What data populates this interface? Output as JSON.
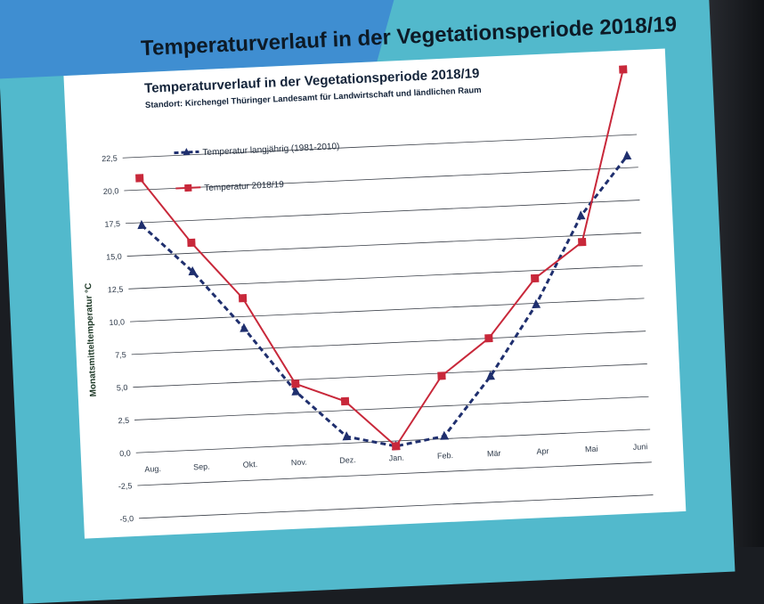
{
  "slide": {
    "title": "Temperaturverlauf in der Vegetationsperiode 2018/19"
  },
  "chart_data": {
    "type": "line",
    "title": "Temperaturverlauf in der Vegetationsperiode 2018/19",
    "subtitle": "Standort: Kirchengel  Thüringer Landesamt für Landwirtschaft und ländlichen Raum",
    "ylabel": "Monatsmitteltemperatur °C",
    "xlabel": "",
    "categories": [
      "Aug.",
      "Sep.",
      "Okt.",
      "Nov.",
      "Dez.",
      "Jan.",
      "Feb.",
      "Mär",
      "Apr",
      "Mai",
      "Juni"
    ],
    "ylim": [
      -5,
      22.5
    ],
    "yticks": [
      "22,5",
      "20,0",
      "17,5",
      "15,0",
      "12,5",
      "10,0",
      "7,5",
      "5,0",
      "2,5",
      "0,0",
      "-2,5",
      "-5,0"
    ],
    "series": [
      {
        "name": "Temperatur langjährig  (1981-2010)",
        "color": "#1f2f6e",
        "style": "dashed",
        "marker": "triangle",
        "values": [
          17.3,
          13.6,
          9.1,
          4.1,
          0.5,
          -0.4,
          0.2,
          4.6,
          9.9,
          16.5,
          20.9
        ]
      },
      {
        "name": "Temperatur 2018/19",
        "color": "#c8283a",
        "style": "solid",
        "marker": "square",
        "values": [
          20.9,
          15.8,
          11.4,
          4.7,
          3.2,
          -0.4,
          4.8,
          7.5,
          11.9,
          14.5,
          27.5
        ]
      }
    ],
    "grid": true,
    "legend": "top-left"
  }
}
